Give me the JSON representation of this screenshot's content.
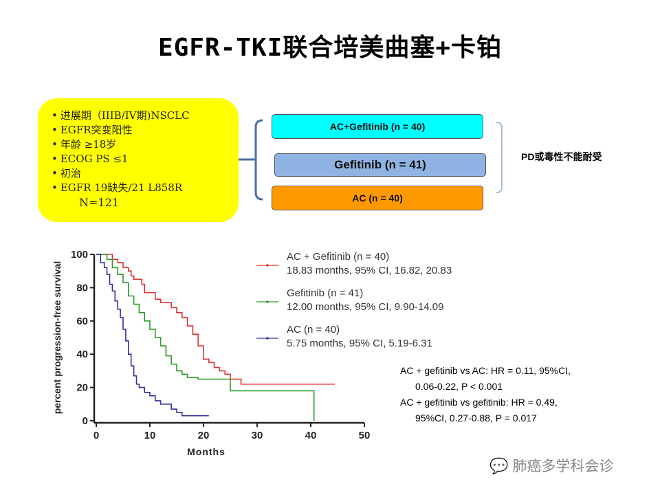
{
  "title": "EGFR-TKI联合培美曲塞+卡铂",
  "criteria": {
    "items": [
      "进展期（IIIB/IV期)NSCLC",
      "EGFR突变阳性",
      "年龄 ≥18岁",
      "ECOG PS ≤1",
      "初治",
      "EGFR 19缺失/21 L858R"
    ],
    "n": "N=121"
  },
  "arms": {
    "arm1": "AC+Gefitinib (n = 40)",
    "arm2": "Gefitinib (n = 41)",
    "arm3": "AC (n = 40)"
  },
  "endpoint": "PD或毒性不能耐受",
  "hr_text": {
    "line1": "AC + gefitinib vs AC: HR = 0.11, 95%CI,",
    "line2": "0.06-0.22, P < 0.001",
    "line3": "AC + gefitinib vs gefitinib: HR = 0.49,",
    "line4": "95%CI, 0.27-0.88, P = 0.017"
  },
  "watermark": "肺癌多学科会诊",
  "chart_data": {
    "type": "line",
    "xlabel": "Months",
    "ylabel": "percent progression-free survival",
    "xlim": [
      0,
      50
    ],
    "ylim": [
      0,
      100
    ],
    "xticks": [
      0,
      10,
      20,
      30,
      40,
      50
    ],
    "yticks": [
      0,
      20,
      40,
      60,
      80,
      100
    ],
    "step": true,
    "legend_position": "right",
    "series": [
      {
        "name": "AC + Gefitinib (n = 40)",
        "legend_line2": "18.83 months, 95% CI, 16.82, 20.83",
        "color": "#e03030",
        "x": [
          0,
          2,
          3,
          4,
          5,
          6,
          6.5,
          7,
          8,
          8.5,
          9,
          11,
          12,
          14,
          15,
          16,
          17,
          18,
          19,
          20,
          21,
          22,
          23,
          24,
          25,
          26,
          27,
          28,
          44.5
        ],
        "y": [
          100,
          100,
          97,
          95,
          92,
          90,
          87,
          85,
          85,
          82,
          77,
          73,
          71,
          68,
          65,
          62,
          57,
          52,
          45,
          37,
          35,
          32,
          30,
          28,
          25,
          25,
          22,
          22,
          22
        ]
      },
      {
        "name": "Gefitinib (n = 41)",
        "legend_line2": "12.00 months, 95% CI, 9.90-14.09",
        "color": "#2a9a2a",
        "x": [
          0,
          2,
          3,
          4,
          5,
          6,
          7,
          8,
          9,
          10,
          11,
          12,
          13,
          14,
          15,
          16,
          17,
          19,
          25,
          40.5,
          40.6
        ],
        "y": [
          100,
          97,
          92,
          88,
          83,
          75,
          70,
          65,
          60,
          55,
          50,
          45,
          39,
          34,
          30,
          28,
          26,
          25,
          18,
          18,
          0
        ]
      },
      {
        "name": "AC (n = 40)",
        "legend_line2": "5.75 months, 95% CI, 5.19-6.31",
        "color": "#3030a0",
        "x": [
          0,
          0.8,
          1.5,
          2,
          2.5,
          3,
          3.5,
          4,
          4.5,
          5,
          5.5,
          6,
          6.5,
          7,
          7.5,
          8,
          9,
          10,
          11,
          12,
          14,
          15,
          16,
          21
        ],
        "y": [
          100,
          95,
          92,
          88,
          82,
          78,
          72,
          67,
          62,
          55,
          48,
          40,
          33,
          27,
          22,
          20,
          17,
          15,
          12,
          10,
          7,
          5,
          3,
          3
        ]
      }
    ]
  }
}
